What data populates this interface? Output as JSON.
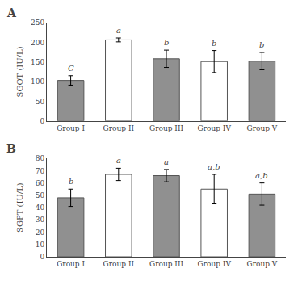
{
  "chart_data": [
    {
      "type": "bar",
      "title": "A",
      "categories": [
        "Group I",
        "Group II",
        "Group III",
        "Group IV",
        "Group V"
      ],
      "values": [
        103,
        206,
        158,
        151,
        152
      ],
      "errors": [
        12,
        5,
        22,
        28,
        22
      ],
      "annotations": [
        "C",
        "a",
        "b",
        "b",
        "b"
      ],
      "colors": [
        "#909090",
        "#ffffff",
        "#909090",
        "#ffffff",
        "#909090"
      ],
      "ylabel": "SGOT (IU/L)",
      "ylim": [
        0,
        250
      ],
      "yticks": [
        0,
        50,
        100,
        150,
        200,
        250
      ],
      "grid": false
    },
    {
      "type": "bar",
      "title": "B",
      "categories": [
        "Group I",
        "Group II",
        "Group III",
        "Group IV",
        "Group V"
      ],
      "values": [
        48,
        67,
        66,
        55,
        51
      ],
      "errors": [
        7,
        5,
        5,
        12,
        9
      ],
      "annotations": [
        "b",
        "a",
        "a",
        "a,b",
        "a,b"
      ],
      "colors": [
        "#909090",
        "#ffffff",
        "#909090",
        "#ffffff",
        "#909090"
      ],
      "ylabel": "SGPT (IU/L)",
      "ylim": [
        0,
        80
      ],
      "yticks": [
        0,
        10,
        20,
        30,
        40,
        50,
        60,
        70,
        80
      ],
      "grid": false
    }
  ]
}
